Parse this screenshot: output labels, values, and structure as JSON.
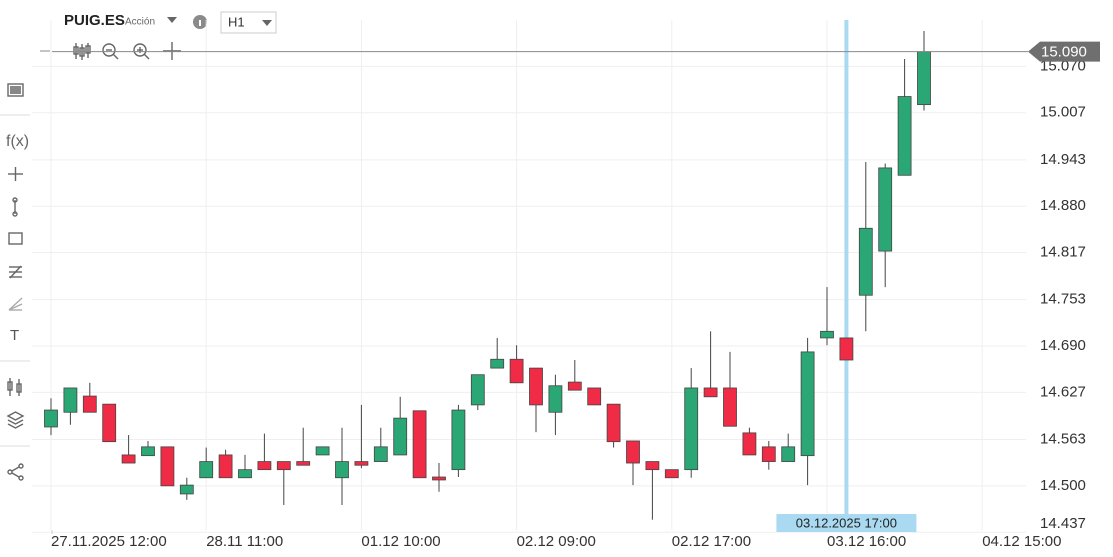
{
  "header": {
    "symbol": "PUIG.ES",
    "kind": "Acción",
    "timeframe": "H1"
  },
  "toolbar_icons": [
    "f(x)",
    "T"
  ],
  "chart_data": {
    "type": "candlestick",
    "up_color": "#2aa775",
    "down_color": "#ef2b45",
    "grid": true,
    "open": [
      14.58,
      14.6,
      14.622,
      14.611,
      14.542,
      14.541,
      14.553,
      14.489,
      14.511,
      14.542,
      14.511,
      14.533,
      14.533,
      14.533,
      14.542,
      14.511,
      14.533,
      14.533,
      14.542,
      14.602,
      14.512,
      14.522,
      14.61,
      14.66,
      14.672,
      14.66,
      14.6,
      14.641,
      14.633,
      14.611,
      14.561,
      14.533,
      14.522,
      14.522,
      14.633,
      14.633,
      14.572,
      14.553,
      14.533,
      14.541,
      14.701,
      14.701,
      14.759,
      14.819,
      14.922,
      15.018
    ],
    "high": [
      14.619,
      14.633,
      14.64,
      14.611,
      14.569,
      14.561,
      14.553,
      14.511,
      14.552,
      14.549,
      14.542,
      14.571,
      14.533,
      14.579,
      14.553,
      14.579,
      14.61,
      14.579,
      14.621,
      14.602,
      14.531,
      14.61,
      14.651,
      14.701,
      14.691,
      14.66,
      14.651,
      14.671,
      14.633,
      14.611,
      14.561,
      14.533,
      14.522,
      14.66,
      14.71,
      14.682,
      14.579,
      14.561,
      14.571,
      14.701,
      14.77,
      14.701,
      14.94,
      14.938,
      15.08,
      15.118
    ],
    "low": [
      14.569,
      14.583,
      14.6,
      14.56,
      14.531,
      14.541,
      14.5,
      14.481,
      14.511,
      14.511,
      14.511,
      14.522,
      14.474,
      14.528,
      14.542,
      14.474,
      14.524,
      14.533,
      14.542,
      14.511,
      14.492,
      14.512,
      14.603,
      14.66,
      14.64,
      14.573,
      14.569,
      14.63,
      14.61,
      14.552,
      14.501,
      14.454,
      14.511,
      14.511,
      14.621,
      14.581,
      14.542,
      14.522,
      14.533,
      14.501,
      14.691,
      14.671,
      14.71,
      14.77,
      14.922,
      15.01
    ],
    "close": [
      14.603,
      14.633,
      14.6,
      14.56,
      14.531,
      14.553,
      14.5,
      14.501,
      14.533,
      14.511,
      14.522,
      14.522,
      14.522,
      14.528,
      14.553,
      14.533,
      14.528,
      14.553,
      14.592,
      14.511,
      14.508,
      14.603,
      14.651,
      14.672,
      14.64,
      14.61,
      14.636,
      14.63,
      14.61,
      14.56,
      14.531,
      14.522,
      14.511,
      14.633,
      14.621,
      14.581,
      14.542,
      14.533,
      14.553,
      14.682,
      14.71,
      14.671,
      14.85,
      14.932,
      15.029,
      15.09
    ],
    "ylim": [
      14.44,
      15.133
    ],
    "yticks": [
      {
        "value": 14.437,
        "label": "14.437"
      },
      {
        "value": 14.5,
        "label": "14.500"
      },
      {
        "value": 14.563,
        "label": "14.563"
      },
      {
        "value": 14.627,
        "label": "14.627"
      },
      {
        "value": 14.69,
        "label": "14.690"
      },
      {
        "value": 14.753,
        "label": "14.753"
      },
      {
        "value": 14.817,
        "label": "14.817"
      },
      {
        "value": 14.88,
        "label": "14.880"
      },
      {
        "value": 14.943,
        "label": "14.943"
      },
      {
        "value": 15.007,
        "label": "15.007"
      },
      {
        "value": 15.07,
        "label": "15.070"
      }
    ],
    "xticks": [
      {
        "value": 0,
        "label": "27.11.2025 12:00"
      },
      {
        "value": 8,
        "label": "28.11 11:00"
      },
      {
        "value": 16,
        "label": "01.12 10:00"
      },
      {
        "value": 24,
        "label": "02.12 09:00"
      },
      {
        "value": 32,
        "label": "02.12 17:00"
      },
      {
        "value": 40,
        "label": "03.12 16:00"
      },
      {
        "value": 48,
        "label": "04.12 15:00"
      }
    ],
    "last_price": {
      "value": 15.09,
      "label": "15.090"
    },
    "crosshair": {
      "index": 41,
      "label": "03.12.2025 17:00"
    }
  }
}
